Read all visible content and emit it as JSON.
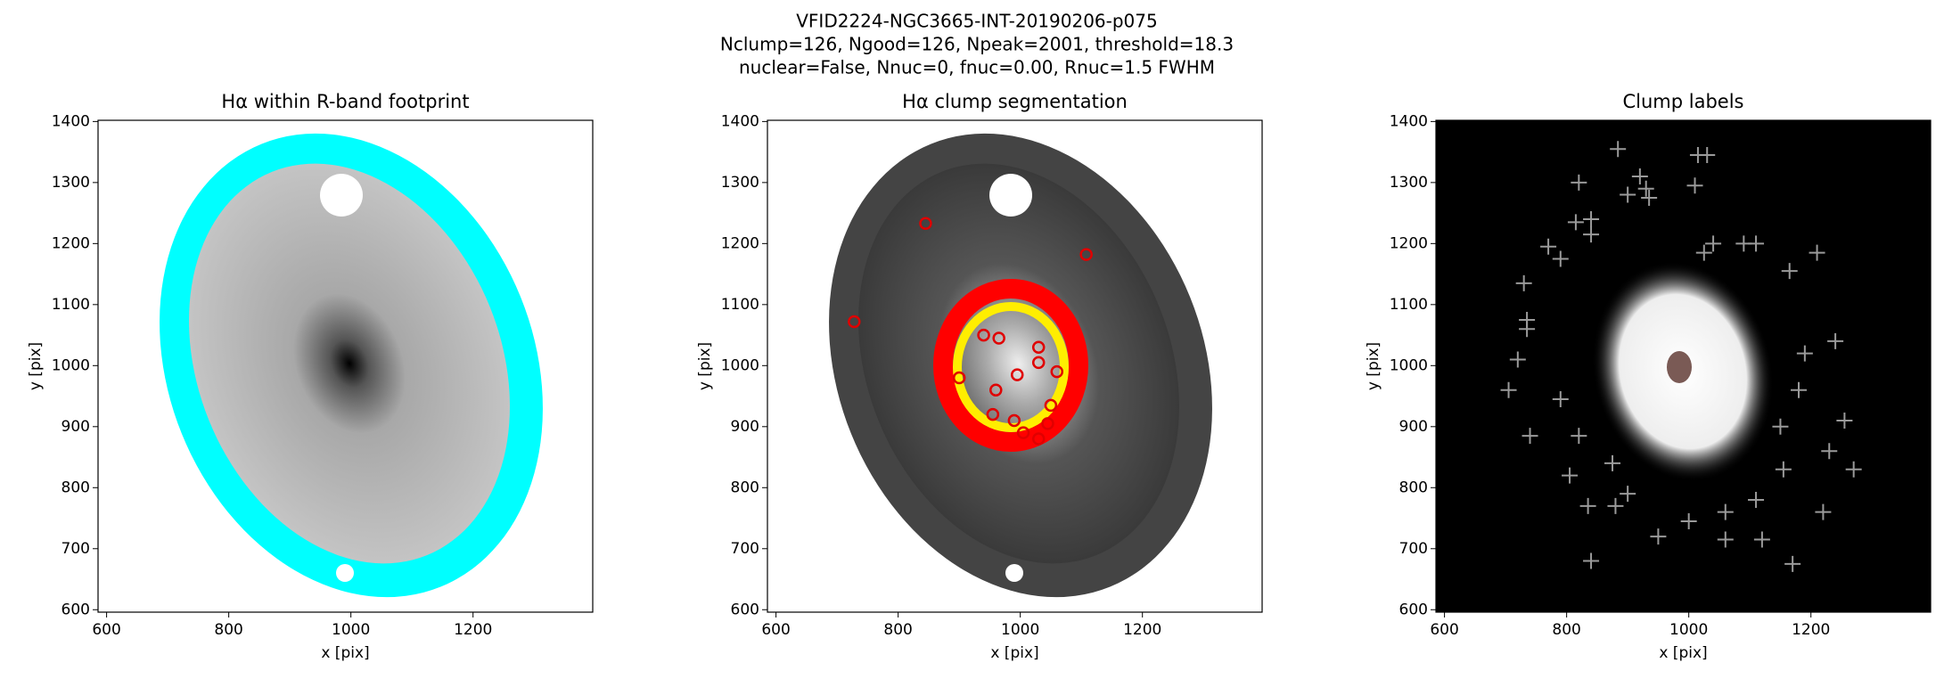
{
  "figure_title": [
    "VFID2224-NGC3665-INT-20190206-p075",
    "Nclump=126, Ngood=126, Npeak=2001, threshold=18.3",
    "nuclear=False, Nnuc=0, fnuc=0.00, Rnuc=1.5 FWHM"
  ],
  "chart_data": [
    {
      "type": "image",
      "title": "Hα within R-band footprint",
      "xlabel": "x [pix]",
      "ylabel": "y [pix]",
      "xlim": [
        586,
        1396
      ],
      "ylim": [
        596,
        1402
      ],
      "xticks": [
        600,
        800,
        1000,
        1200
      ],
      "yticks": [
        600,
        700,
        800,
        900,
        1000,
        1100,
        1200,
        1300,
        1400
      ]
    },
    {
      "type": "scatter",
      "title": "Hα clump segmentation",
      "xlabel": "x [pix]",
      "ylabel": "y [pix]",
      "xlim": [
        586,
        1396
      ],
      "ylim": [
        596,
        1402
      ],
      "xticks": [
        600,
        800,
        1000,
        1200
      ],
      "yticks": [
        600,
        700,
        800,
        900,
        1000,
        1100,
        1200,
        1300,
        1400
      ],
      "marker": "o",
      "color": "#e00000",
      "x": [
        845,
        1108,
        728,
        940,
        965,
        1030,
        995,
        1030,
        1060,
        900,
        960,
        1050,
        955,
        990,
        1045,
        1030,
        1005
      ],
      "y": [
        1233,
        1182,
        1072,
        1050,
        1045,
        1030,
        985,
        1005,
        990,
        980,
        960,
        935,
        920,
        910,
        905,
        880,
        890
      ]
    },
    {
      "type": "scatter",
      "title": "Clump labels",
      "xlabel": "x [pix]",
      "ylabel": "y [pix]",
      "xlim": [
        586,
        1396
      ],
      "ylim": [
        596,
        1402
      ],
      "xticks": [
        600,
        800,
        1000,
        1200
      ],
      "yticks": [
        600,
        700,
        800,
        900,
        1000,
        1100,
        1200,
        1300,
        1400
      ],
      "marker": "+",
      "color": "#9a9a9a",
      "x": [
        884,
        1015,
        1030,
        820,
        1010,
        920,
        930,
        900,
        935,
        815,
        840,
        840,
        770,
        790,
        1025,
        1040,
        1090,
        1110,
        1165,
        1210,
        730,
        735,
        735,
        720,
        705,
        740,
        820,
        790,
        805,
        880,
        835,
        840,
        950,
        1060,
        1120,
        1170,
        1220,
        1270,
        1255,
        1240,
        1190,
        1180,
        1150,
        1230,
        1155,
        875,
        900,
        1060,
        1000,
        1110
      ],
      "y": [
        1355,
        1345,
        1345,
        1300,
        1295,
        1310,
        1290,
        1280,
        1275,
        1235,
        1240,
        1215,
        1195,
        1175,
        1185,
        1200,
        1200,
        1200,
        1155,
        1185,
        1135,
        1075,
        1060,
        1010,
        960,
        885,
        885,
        945,
        820,
        770,
        770,
        680,
        720,
        715,
        715,
        675,
        760,
        830,
        910,
        1040,
        1020,
        960,
        900,
        860,
        830,
        840,
        790,
        760,
        745,
        780
      ]
    }
  ]
}
